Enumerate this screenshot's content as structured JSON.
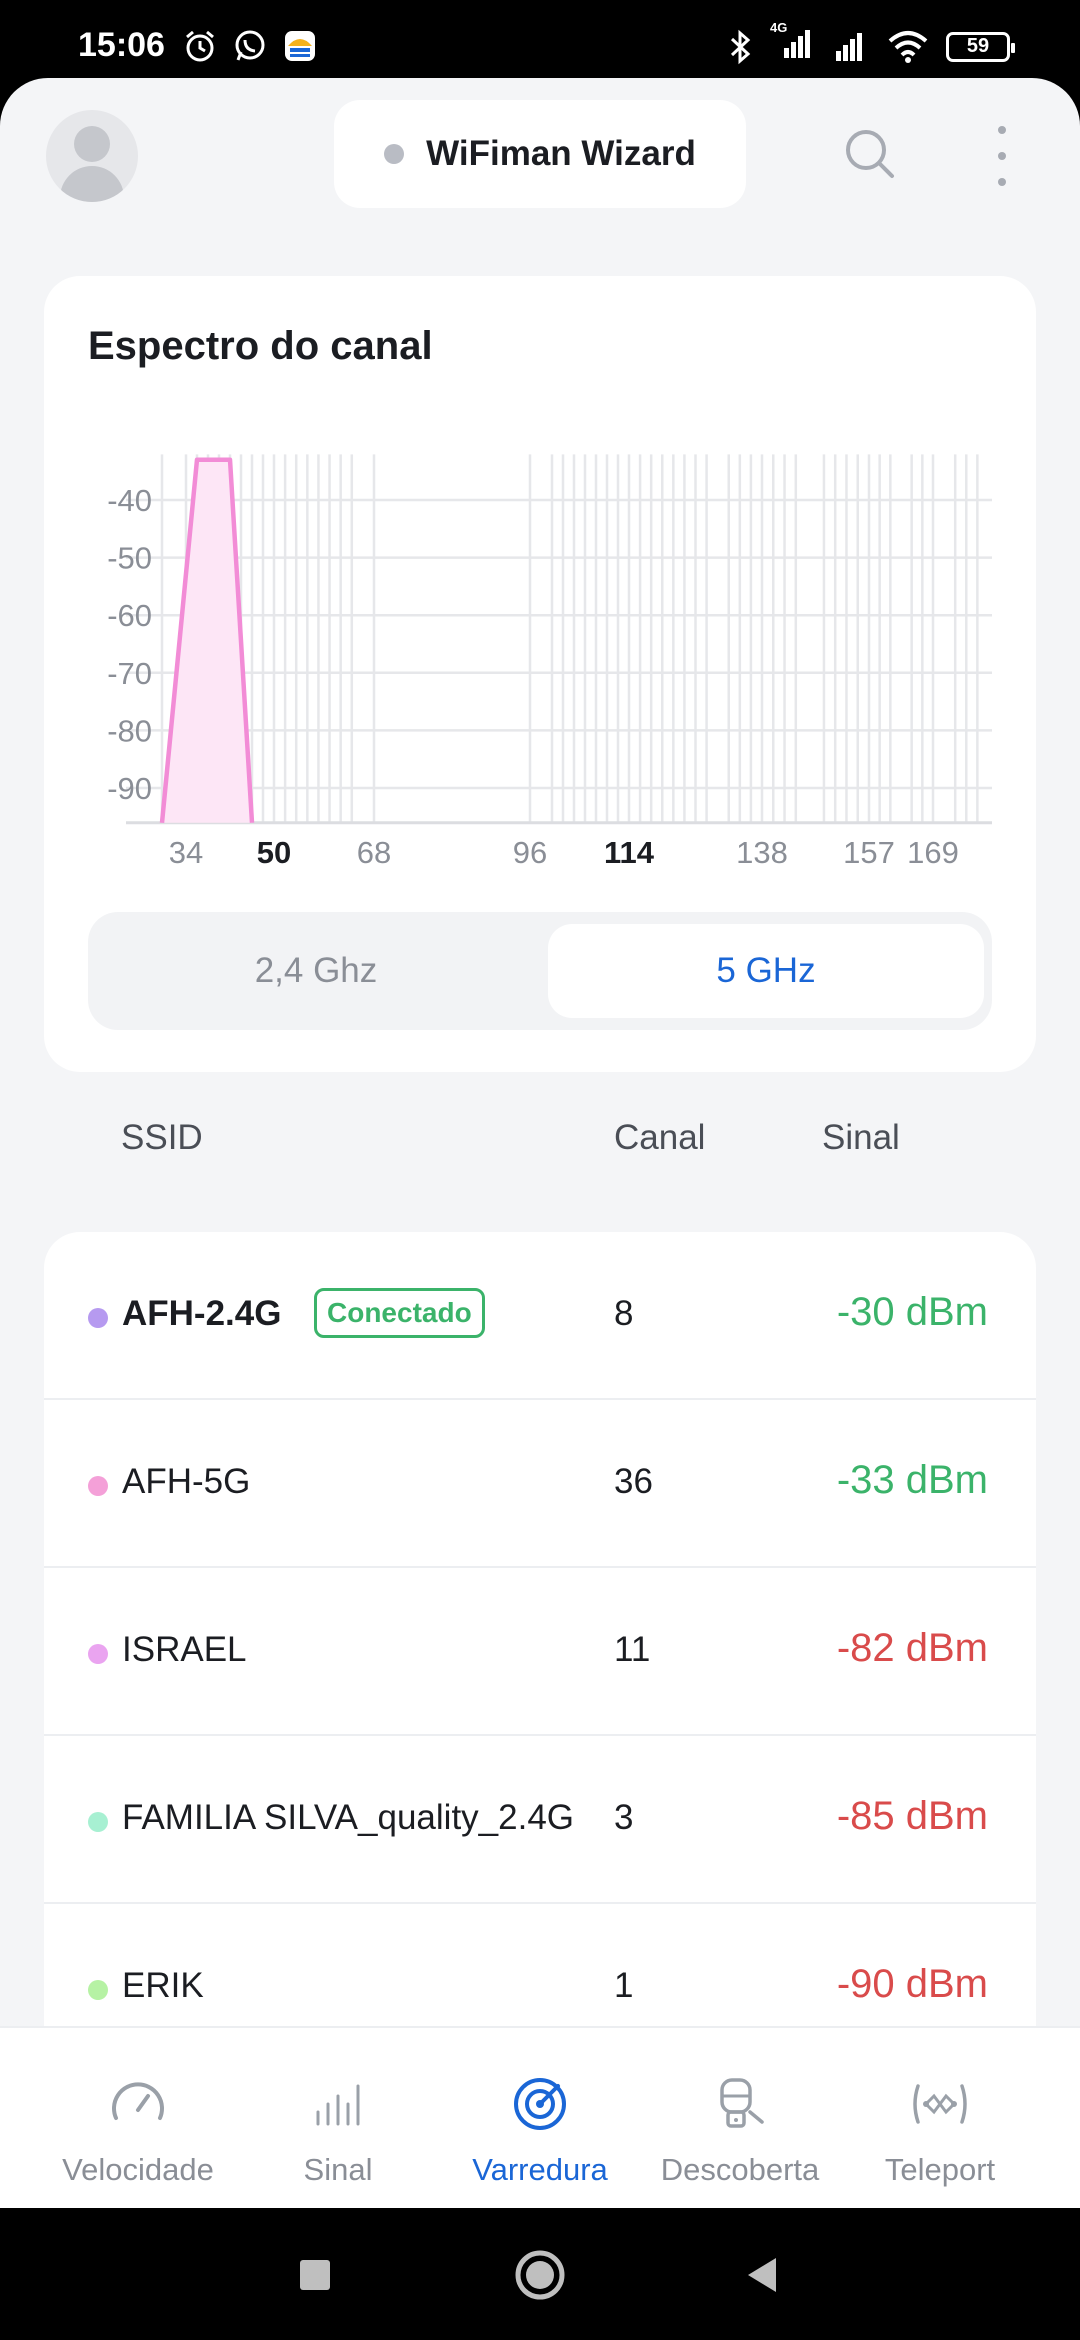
{
  "status_bar": {
    "time": "15:06",
    "battery": "59",
    "network_type": "4G",
    "left_icons": [
      "alarm-icon",
      "whatsapp-icon",
      "app-notification-icon"
    ],
    "right_icons": [
      "bluetooth-icon",
      "cell-signal-icon",
      "cell-signal-icon",
      "wifi-icon",
      "battery-icon"
    ]
  },
  "header": {
    "title": "WiFiman Wizard",
    "avatar_icon": "user-avatar-icon",
    "search_icon": "search-icon",
    "menu_icon": "more-vertical-icon"
  },
  "spectrum": {
    "title": "Espectro do canal",
    "band_options": [
      "2,4 Ghz",
      "5 GHz"
    ],
    "selected_band": "5 GHz"
  },
  "chart_data": {
    "type": "area",
    "title": "Espectro do canal",
    "xlabel": "",
    "ylabel": "",
    "x_ticks": [
      {
        "label": "34",
        "value": 34,
        "bold": false
      },
      {
        "label": "50",
        "value": 50,
        "bold": true
      },
      {
        "label": "68",
        "value": 68,
        "bold": false
      },
      {
        "label": "96",
        "value": 96,
        "bold": false
      },
      {
        "label": "114",
        "value": 114,
        "bold": true
      },
      {
        "label": "138",
        "value": 138,
        "bold": false
      },
      {
        "label": "157",
        "value": 157,
        "bold": false
      },
      {
        "label": "169",
        "value": 169,
        "bold": false
      }
    ],
    "y_ticks": [
      -40,
      -50,
      -60,
      -70,
      -80,
      -90
    ],
    "ylim": [
      -95,
      -30
    ],
    "channel_lines": [
      32,
      34,
      36,
      38,
      40,
      42,
      44,
      46,
      48,
      50,
      52,
      54,
      56,
      58,
      60,
      62,
      64,
      68,
      96,
      100,
      102,
      104,
      106,
      108,
      110,
      112,
      114,
      116,
      118,
      120,
      122,
      124,
      126,
      128,
      132,
      134,
      136,
      138,
      140,
      142,
      144,
      149,
      151,
      153,
      155,
      157,
      159,
      161,
      165,
      167,
      169,
      173,
      175,
      177
    ],
    "series": [
      {
        "name": "AFH-5G",
        "color": "#f28cd6",
        "fill": "#fde6f6",
        "channel": 36,
        "points": [
          [
            32,
            -95
          ],
          [
            36,
            -33
          ],
          [
            42,
            -33
          ],
          [
            46,
            -95
          ]
        ]
      }
    ],
    "grid": true
  },
  "table_headers": {
    "ssid": "SSID",
    "channel": "Canal",
    "signal": "Sinal"
  },
  "networks": [
    {
      "ssid": "AFH-2.4G",
      "badge": "Conectado",
      "channel": "8",
      "signal": "-30 dBm",
      "dot_color": "#b69af0",
      "signal_color": "#3bb36a",
      "bold": true
    },
    {
      "ssid": "AFH-5G",
      "badge": "",
      "channel": "36",
      "signal": "-33 dBm",
      "dot_color": "#f4a0d8",
      "signal_color": "#3bb36a",
      "bold": false
    },
    {
      "ssid": "ISRAEL",
      "badge": "",
      "channel": "11",
      "signal": "-82 dBm",
      "dot_color": "#eaa4f0",
      "signal_color": "#d94b4b",
      "bold": false
    },
    {
      "ssid": "FAMILIA SILVA_quality_2.4G",
      "badge": "",
      "channel": "3",
      "signal": "-85 dBm",
      "dot_color": "#a7f0d2",
      "signal_color": "#d94b4b",
      "bold": false
    },
    {
      "ssid": "ERIK",
      "badge": "",
      "channel": "1",
      "signal": "-90 dBm",
      "dot_color": "#b6f2a4",
      "signal_color": "#d94b4b",
      "bold": false
    }
  ],
  "bottom_nav": [
    {
      "label": "Velocidade",
      "icon": "speedometer-icon",
      "active": false
    },
    {
      "label": "Sinal",
      "icon": "signal-bars-icon",
      "active": false
    },
    {
      "label": "Varredura",
      "icon": "radar-scan-icon",
      "active": true
    },
    {
      "label": "Descoberta",
      "icon": "device-discovery-icon",
      "active": false
    },
    {
      "label": "Teleport",
      "icon": "teleport-icon",
      "active": false
    }
  ],
  "system_nav": [
    "recent-apps-icon",
    "home-icon",
    "back-icon"
  ],
  "colors": {
    "accent": "#1a66d6",
    "good": "#3bb36a",
    "bad": "#d94b4b"
  }
}
